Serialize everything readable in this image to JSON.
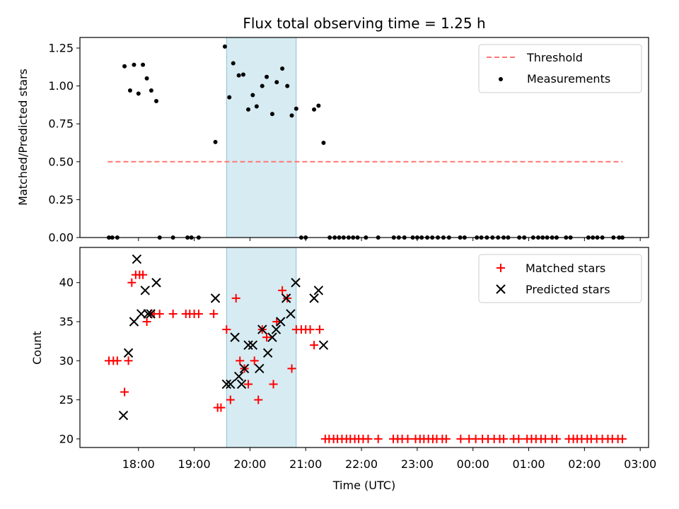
{
  "chart_data": [
    {
      "type": "scatter",
      "title": "Flux total observing time = 1.25 h",
      "xlabel": "",
      "ylabel": "Matched/Predicted stars",
      "xlim_hours": [
        16.95,
        27.15
      ],
      "ylim": [
        0.0,
        1.32
      ],
      "yticks": [
        0.0,
        0.25,
        0.5,
        0.75,
        1.0,
        1.25
      ],
      "ytick_labels": [
        "0.00",
        "0.25",
        "0.50",
        "0.75",
        "1.00",
        "1.25"
      ],
      "xticks_hours": [
        18,
        19,
        20,
        21,
        22,
        23,
        24,
        25,
        26,
        27
      ],
      "colors": {
        "threshold": "#ff7777",
        "points": "#000000",
        "span": "#add8e6"
      },
      "span": {
        "start": 19.58,
        "end": 20.83
      },
      "threshold": {
        "name": "Threshold",
        "value": 0.5,
        "x": [
          17.45,
          26.68
        ]
      },
      "series": [
        {
          "name": "Measurements",
          "x": [
            17.47,
            17.53,
            17.62,
            17.75,
            17.85,
            17.92,
            18.0,
            18.08,
            18.15,
            18.23,
            18.32,
            18.38,
            18.62,
            18.88,
            18.95,
            19.08,
            19.38,
            19.55,
            19.63,
            19.7,
            19.8,
            19.88,
            19.97,
            20.05,
            20.12,
            20.22,
            20.3,
            20.4,
            20.48,
            20.58,
            20.67,
            20.75,
            20.83,
            20.92,
            21.0,
            21.15,
            21.23,
            21.32,
            21.43,
            21.52,
            21.6,
            21.68,
            21.77,
            21.85,
            21.93,
            22.08,
            22.3,
            22.58,
            22.67,
            22.77,
            22.92,
            23.0,
            23.08,
            23.18,
            23.27,
            23.37,
            23.47,
            23.57,
            23.77,
            23.85,
            24.07,
            24.15,
            24.25,
            24.35,
            24.45,
            24.55,
            24.63,
            24.83,
            24.92,
            25.08,
            25.17,
            25.25,
            25.33,
            25.42,
            25.5,
            25.67,
            25.75,
            26.07,
            26.15,
            26.23,
            26.32,
            26.52,
            26.62,
            26.68
          ],
          "y": [
            0,
            0,
            0,
            1.13,
            0.97,
            1.14,
            0.95,
            1.14,
            1.05,
            0.97,
            0.9,
            0,
            0,
            0,
            0,
            0,
            0.63,
            1.26,
            0.925,
            1.15,
            1.07,
            1.075,
            0.845,
            0.94,
            0.865,
            1.0,
            1.06,
            0.815,
            1.025,
            1.115,
            1.0,
            0.805,
            0.85,
            0,
            0,
            0.845,
            0.87,
            0.625,
            0,
            0,
            0,
            0,
            0,
            0,
            0,
            0,
            0,
            0,
            0,
            0,
            0,
            0,
            0,
            0,
            0,
            0,
            0,
            0,
            0,
            0,
            0,
            0,
            0,
            0,
            0,
            0,
            0,
            0,
            0,
            0,
            0,
            0,
            0,
            0,
            0,
            0,
            0,
            0,
            0,
            0,
            0,
            0,
            0,
            0
          ]
        }
      ],
      "legend": [
        "Threshold",
        "Measurements"
      ],
      "legend_position": "top-right"
    },
    {
      "type": "scatter",
      "title": "",
      "xlabel": "Time (UTC)",
      "ylabel": "Count",
      "xlim_hours": [
        16.95,
        27.15
      ],
      "ylim": [
        18.9,
        44.5
      ],
      "yticks": [
        20,
        25,
        30,
        35,
        40
      ],
      "ytick_labels": [
        "20",
        "25",
        "30",
        "35",
        "40"
      ],
      "xticks_hours": [
        18,
        19,
        20,
        21,
        22,
        23,
        24,
        25,
        26,
        27
      ],
      "xtick_labels": [
        "18:00",
        "19:00",
        "20:00",
        "21:00",
        "22:00",
        "23:00",
        "00:00",
        "01:00",
        "02:00",
        "03:00"
      ],
      "colors": {
        "matched": "#ff0000",
        "predicted": "#000000",
        "span": "#add8e6"
      },
      "span": {
        "start": 19.58,
        "end": 20.83
      },
      "series": [
        {
          "name": "Matched stars",
          "marker": "+",
          "x": [
            17.47,
            17.55,
            17.62,
            17.75,
            17.82,
            17.88,
            17.95,
            18.02,
            18.08,
            18.15,
            18.22,
            18.28,
            18.38,
            18.62,
            18.85,
            18.92,
            19.0,
            19.08,
            19.35,
            19.42,
            19.48,
            19.58,
            19.65,
            19.75,
            19.82,
            19.9,
            19.97,
            20.08,
            20.15,
            20.22,
            20.3,
            20.42,
            20.48,
            20.58,
            20.67,
            20.75,
            20.83,
            20.92,
            21.0,
            21.08,
            21.15,
            21.25,
            21.35,
            21.42,
            21.5,
            21.57,
            21.65,
            21.73,
            21.8,
            21.88,
            21.95,
            22.03,
            22.12,
            22.3,
            22.57,
            22.65,
            22.73,
            22.83,
            22.97,
            23.05,
            23.12,
            23.2,
            23.28,
            23.35,
            23.45,
            23.52,
            23.78,
            23.93,
            24.05,
            24.17,
            24.27,
            24.38,
            24.48,
            24.55,
            24.73,
            24.82,
            24.97,
            25.05,
            25.13,
            25.22,
            25.3,
            25.42,
            25.5,
            25.72,
            25.8,
            25.87,
            25.95,
            26.05,
            26.12,
            26.22,
            26.32,
            26.42,
            26.5,
            26.6,
            26.68
          ],
          "y": [
            30,
            30,
            30,
            26,
            30,
            40,
            41,
            41,
            41,
            35,
            36,
            36,
            36,
            36,
            36,
            36,
            36,
            36,
            36,
            24,
            24,
            34,
            25,
            38,
            30,
            29,
            27,
            30,
            25,
            34,
            33,
            27,
            35,
            39,
            38,
            29,
            34,
            34,
            34,
            34,
            32,
            34,
            20,
            20,
            20,
            20,
            20,
            20,
            20,
            20,
            20,
            20,
            20,
            20,
            20,
            20,
            20,
            20,
            20,
            20,
            20,
            20,
            20,
            20,
            20,
            20,
            20,
            20,
            20,
            20,
            20,
            20,
            20,
            20,
            20,
            20,
            20,
            20,
            20,
            20,
            20,
            20,
            20,
            20,
            20,
            20,
            20,
            20,
            20,
            20,
            20,
            20,
            20,
            20,
            20
          ]
        },
        {
          "name": "Predicted stars",
          "marker": "x",
          "x": [
            17.73,
            17.82,
            17.92,
            17.97,
            18.05,
            18.12,
            18.17,
            18.22,
            18.32,
            19.38,
            19.58,
            19.65,
            19.73,
            19.8,
            19.85,
            19.9,
            19.97,
            20.05,
            20.17,
            20.22,
            20.32,
            20.4,
            20.47,
            20.55,
            20.65,
            20.73,
            20.82,
            21.15,
            21.23,
            21.32
          ],
          "y": [
            23,
            31,
            35,
            43,
            36,
            39,
            36,
            36,
            40,
            38,
            27,
            27,
            33,
            28,
            27,
            29,
            32,
            32,
            29,
            34,
            31,
            33,
            34,
            35,
            38,
            36,
            40,
            38,
            39,
            32
          ]
        }
      ],
      "legend": [
        "Matched stars",
        "Predicted stars"
      ],
      "legend_position": "top-right"
    }
  ]
}
